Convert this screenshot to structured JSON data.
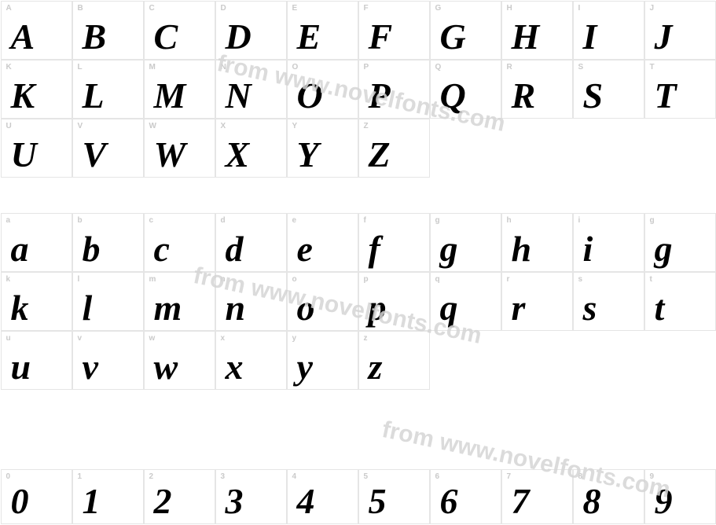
{
  "colors": {
    "background": "#ffffff",
    "cell_border": "#e5e5e5",
    "key_text": "#cacaca",
    "glyph_text": "#000000",
    "watermark": "#d5d5d5"
  },
  "typography": {
    "glyph_font": "serif-italic-bold",
    "glyph_size_pt": 34,
    "key_font": "sans-bold",
    "key_size_pt": 8
  },
  "watermark_text": "from www.novelfonts.com",
  "rows": {
    "upper": [
      {
        "cols": [
          {
            "k": "A",
            "g": "A"
          },
          {
            "k": "B",
            "g": "B"
          },
          {
            "k": "C",
            "g": "C"
          },
          {
            "k": "D",
            "g": "D"
          },
          {
            "k": "E",
            "g": "E"
          },
          {
            "k": "F",
            "g": "F"
          },
          {
            "k": "G",
            "g": "G"
          },
          {
            "k": "H",
            "g": "H"
          },
          {
            "k": "I",
            "g": "I"
          },
          {
            "k": "J",
            "g": "J"
          }
        ]
      },
      {
        "cols": [
          {
            "k": "K",
            "g": "K"
          },
          {
            "k": "L",
            "g": "L"
          },
          {
            "k": "M",
            "g": "M"
          },
          {
            "k": "N",
            "g": "N"
          },
          {
            "k": "O",
            "g": "O"
          },
          {
            "k": "P",
            "g": "P"
          },
          {
            "k": "Q",
            "g": "Q"
          },
          {
            "k": "R",
            "g": "R"
          },
          {
            "k": "S",
            "g": "S"
          },
          {
            "k": "T",
            "g": "T"
          }
        ]
      },
      {
        "cols": [
          {
            "k": "U",
            "g": "U"
          },
          {
            "k": "V",
            "g": "V"
          },
          {
            "k": "W",
            "g": "W"
          },
          {
            "k": "X",
            "g": "X"
          },
          {
            "k": "Y",
            "g": "Y"
          },
          {
            "k": "Z",
            "g": "Z"
          },
          {
            "empty": true
          },
          {
            "empty": true
          },
          {
            "empty": true
          },
          {
            "empty": true
          }
        ]
      }
    ],
    "lower": [
      {
        "cols": [
          {
            "k": "a",
            "g": "a"
          },
          {
            "k": "b",
            "g": "b"
          },
          {
            "k": "c",
            "g": "c"
          },
          {
            "k": "d",
            "g": "d"
          },
          {
            "k": "e",
            "g": "e"
          },
          {
            "k": "f",
            "g": "f"
          },
          {
            "k": "g",
            "g": "g"
          },
          {
            "k": "h",
            "g": "h"
          },
          {
            "k": "i",
            "g": "i"
          },
          {
            "k": "g",
            "g": "g"
          }
        ]
      },
      {
        "cols": [
          {
            "k": "k",
            "g": "k"
          },
          {
            "k": "l",
            "g": "l"
          },
          {
            "k": "m",
            "g": "m"
          },
          {
            "k": "n",
            "g": "n"
          },
          {
            "k": "o",
            "g": "o"
          },
          {
            "k": "p",
            "g": "p"
          },
          {
            "k": "q",
            "g": "q"
          },
          {
            "k": "r",
            "g": "r"
          },
          {
            "k": "s",
            "g": "s"
          },
          {
            "k": "t",
            "g": "t"
          }
        ]
      },
      {
        "cols": [
          {
            "k": "u",
            "g": "u"
          },
          {
            "k": "v",
            "g": "v"
          },
          {
            "k": "w",
            "g": "w"
          },
          {
            "k": "x",
            "g": "x"
          },
          {
            "k": "y",
            "g": "y"
          },
          {
            "k": "z",
            "g": "z"
          },
          {
            "empty": true
          },
          {
            "empty": true
          },
          {
            "empty": true
          },
          {
            "empty": true
          }
        ]
      }
    ],
    "digits": [
      {
        "cols": [
          {
            "k": "0",
            "g": "0"
          },
          {
            "k": "1",
            "g": "1"
          },
          {
            "k": "2",
            "g": "2"
          },
          {
            "k": "3",
            "g": "3"
          },
          {
            "k": "4",
            "g": "4"
          },
          {
            "k": "5",
            "g": "5"
          },
          {
            "k": "6",
            "g": "6"
          },
          {
            "k": "7",
            "g": "7"
          },
          {
            "k": "8",
            "g": "8"
          },
          {
            "k": "9",
            "g": "9"
          }
        ]
      }
    ]
  }
}
